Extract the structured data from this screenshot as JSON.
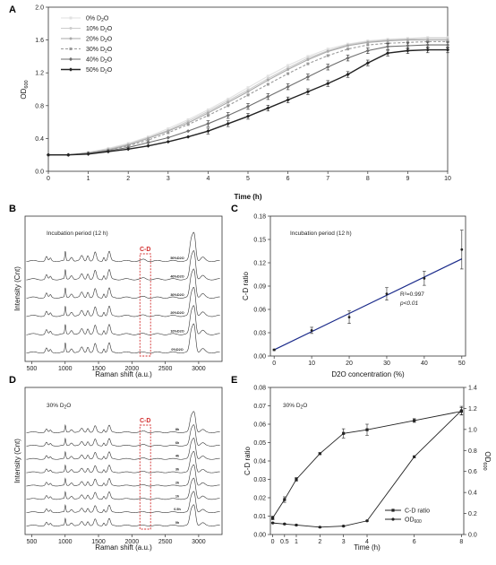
{
  "panels": {
    "A": {
      "letter": "A",
      "type": "line",
      "xlabel": "Time (h)",
      "ylabel": "OD600",
      "xlim": [
        0,
        10
      ],
      "ylim": [
        0,
        2.0
      ],
      "xticks": [
        0,
        1,
        2,
        3,
        4,
        5,
        6,
        7,
        8,
        9,
        10
      ],
      "yticks": [
        0,
        0.4,
        0.8,
        1.2,
        1.6,
        2.0
      ],
      "legend_position": "top-left",
      "x": [
        0,
        0.5,
        1,
        1.5,
        2,
        2.5,
        3,
        3.5,
        4,
        4.5,
        5,
        5.5,
        6,
        6.5,
        7,
        7.5,
        8,
        8.5,
        9,
        9.5,
        10
      ],
      "series": [
        {
          "name": "0% D2O",
          "color": "#e2e2e2",
          "dash": "",
          "values": [
            0.2,
            0.2,
            0.23,
            0.28,
            0.34,
            0.42,
            0.52,
            0.63,
            0.75,
            0.88,
            1.02,
            1.16,
            1.29,
            1.4,
            1.49,
            1.55,
            1.59,
            1.61,
            1.62,
            1.63,
            1.63
          ]
        },
        {
          "name": "10% D2O",
          "color": "#cccccc",
          "dash": "",
          "values": [
            0.2,
            0.2,
            0.23,
            0.27,
            0.33,
            0.41,
            0.5,
            0.61,
            0.73,
            0.86,
            0.99,
            1.13,
            1.26,
            1.38,
            1.47,
            1.54,
            1.58,
            1.6,
            1.61,
            1.62,
            1.62
          ]
        },
        {
          "name": "20% D2O",
          "color": "#a9a9a9",
          "dash": "",
          "values": [
            0.2,
            0.2,
            0.22,
            0.26,
            0.32,
            0.4,
            0.49,
            0.59,
            0.71,
            0.84,
            0.97,
            1.11,
            1.24,
            1.36,
            1.46,
            1.53,
            1.57,
            1.59,
            1.6,
            1.6,
            1.6
          ]
        },
        {
          "name": "30% D2O",
          "color": "#9a9a9a",
          "dash": "3,2",
          "values": [
            0.2,
            0.2,
            0.22,
            0.26,
            0.31,
            0.38,
            0.47,
            0.57,
            0.68,
            0.8,
            0.93,
            1.06,
            1.19,
            1.31,
            1.41,
            1.49,
            1.54,
            1.56,
            1.57,
            1.58,
            1.58
          ]
        },
        {
          "name": "40% D2O",
          "color": "#6e6e6e",
          "dash": "",
          "values": [
            0.2,
            0.2,
            0.22,
            0.25,
            0.29,
            0.35,
            0.41,
            0.49,
            0.58,
            0.68,
            0.79,
            0.91,
            1.03,
            1.15,
            1.27,
            1.38,
            1.47,
            1.52,
            1.53,
            1.54,
            1.54
          ]
        },
        {
          "name": "50% D2O",
          "color": "#222222",
          "dash": "",
          "values": [
            0.2,
            0.2,
            0.21,
            0.24,
            0.27,
            0.31,
            0.36,
            0.42,
            0.49,
            0.58,
            0.67,
            0.77,
            0.87,
            0.97,
            1.07,
            1.18,
            1.32,
            1.44,
            1.47,
            1.48,
            1.48
          ]
        }
      ]
    },
    "B": {
      "letter": "B",
      "type": "line",
      "note": "Incubation period (12 h)",
      "xlabel": "Raman shift (a.u.)",
      "ylabel": "Intensity (Cnt)",
      "xlim": [
        400,
        3350
      ],
      "xticks": [
        500,
        1000,
        1500,
        2000,
        2500,
        3000
      ],
      "band_label": "C-D",
      "band_range": [
        2120,
        2280
      ],
      "spectra_labels": [
        "50%D2O",
        "40%D2O",
        "30%D2O",
        "20%D2O",
        "10%D2O",
        "0%D2O"
      ]
    },
    "C": {
      "letter": "C",
      "type": "scatter",
      "note": "Incubation period (12 h)",
      "xlabel": "D2O concentration (%)",
      "ylabel": "C-D ratio",
      "xlim": [
        0,
        50
      ],
      "ylim": [
        0,
        0.18
      ],
      "xticks": [
        0,
        10,
        20,
        30,
        40,
        50
      ],
      "yticks": [
        0.0,
        0.03,
        0.06,
        0.09,
        0.12,
        0.15,
        0.18
      ],
      "r2": "R²=0.997",
      "p": "p<0.01",
      "x": [
        0,
        10,
        20,
        30,
        40,
        50
      ],
      "y": [
        0.008,
        0.033,
        0.05,
        0.08,
        0.1,
        0.137
      ],
      "err": [
        0.001,
        0.004,
        0.008,
        0.008,
        0.009,
        0.025
      ],
      "fit": {
        "x": [
          0,
          50
        ],
        "y": [
          0.008,
          0.125
        ]
      }
    },
    "D": {
      "letter": "D",
      "type": "line",
      "note": "30% D2O",
      "xlabel": "Raman shift (a.u.)",
      "ylabel": "Intensity (Cnt)",
      "xlim": [
        400,
        3350
      ],
      "xticks": [
        500,
        1000,
        1500,
        2000,
        2500,
        3000
      ],
      "band_label": "C-D",
      "band_range": [
        2120,
        2280
      ],
      "spectra_labels": [
        "8h",
        "6h",
        "4h",
        "3h",
        "2h",
        "1h",
        "0.5h",
        "0h"
      ]
    },
    "E": {
      "letter": "E",
      "type": "line",
      "note": "30% D2O",
      "xlabel": "Time (h)",
      "ylabel": "C-D ratio",
      "ylabel2": "OD600",
      "xticks": [
        0,
        0.5,
        1,
        2,
        3,
        4,
        6,
        8
      ],
      "xtick_labels": [
        "0",
        "0.5",
        "1",
        "2",
        "3",
        "4",
        "6",
        "8"
      ],
      "ylim": [
        0,
        0.08
      ],
      "yticks": [
        0.0,
        0.01,
        0.02,
        0.03,
        0.04,
        0.05,
        0.06,
        0.07,
        0.08
      ],
      "ylim2": [
        0,
        1.4
      ],
      "yticks2": [
        0.0,
        0.2,
        0.4,
        0.6,
        0.8,
        1.0,
        1.2,
        1.4
      ],
      "legend_position": "bottom-right",
      "series": [
        {
          "name": "C-D ratio",
          "marker": "square",
          "axis": "left",
          "x": [
            0,
            0.5,
            1,
            2,
            3,
            4,
            6,
            8
          ],
          "y": [
            0.009,
            0.019,
            0.03,
            0.044,
            0.055,
            0.057,
            0.062,
            0.067
          ],
          "err": [
            0.001,
            0.0015,
            0.001,
            0.0005,
            0.0025,
            0.003,
            0.001,
            0.002
          ]
        },
        {
          "name": "OD600",
          "marker": "circle",
          "axis": "right",
          "x": [
            0,
            0.5,
            1,
            2,
            3,
            4,
            6,
            8
          ],
          "y": [
            0.11,
            0.1,
            0.09,
            0.07,
            0.08,
            0.13,
            0.74,
            1.18
          ],
          "err": [
            0.005,
            0.005,
            0.005,
            0.005,
            0.005,
            0.005,
            0.01,
            0.04
          ]
        }
      ]
    }
  }
}
